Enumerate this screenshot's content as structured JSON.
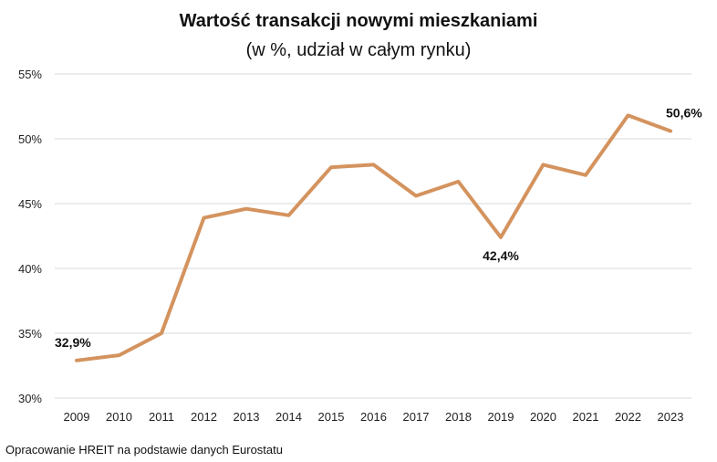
{
  "chart_data": {
    "type": "line",
    "title": "Wartość transakcji nowymi mieszkaniami",
    "subtitle": "(w %, udział w całym rynku)",
    "xlabel": "",
    "ylabel": "",
    "x": [
      "2009",
      "2010",
      "2011",
      "2012",
      "2013",
      "2014",
      "2015",
      "2016",
      "2017",
      "2018",
      "2019",
      "2020",
      "2021",
      "2022",
      "2023"
    ],
    "series": [
      {
        "values": [
          32.9,
          33.3,
          35.0,
          43.9,
          44.6,
          44.1,
          47.8,
          48.0,
          45.6,
          46.7,
          42.4,
          48.0,
          47.2,
          51.8,
          50.6
        ]
      }
    ],
    "ylim": [
      30,
      55
    ],
    "yticks": [
      "30%",
      "35%",
      "40%",
      "45%",
      "50%",
      "55%"
    ],
    "data_labels": [
      {
        "index": 0,
        "text": "32,9%",
        "pos": "above"
      },
      {
        "index": 10,
        "text": "42,4%",
        "pos": "below"
      },
      {
        "index": 14,
        "text": "50,6%",
        "pos": "above"
      }
    ],
    "grid": true,
    "legend": "none",
    "line_color": "#D4935E",
    "grid_color": "#d9d9d9"
  },
  "source": "Opracowanie HREIT na podstawie danych Eurostatu"
}
